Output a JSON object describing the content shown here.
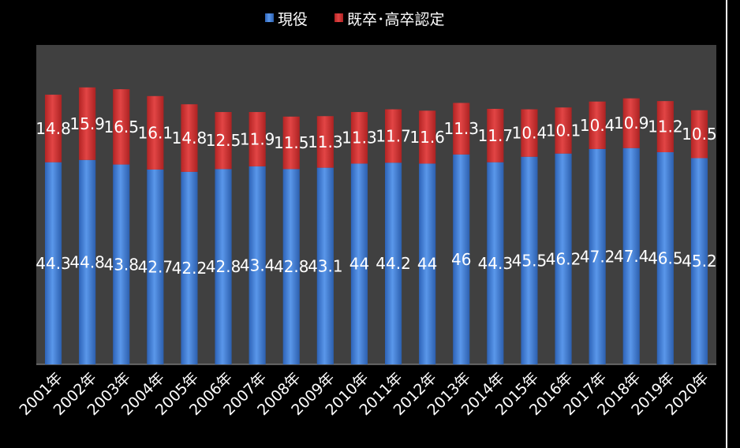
{
  "chart_data": {
    "type": "bar",
    "stacked": true,
    "categories": [
      "2001年",
      "2002年",
      "2003年",
      "2004年",
      "2005年",
      "2006年",
      "2007年",
      "2008年",
      "2009年",
      "2010年",
      "2011年",
      "2012年",
      "2013年",
      "2014年",
      "2015年",
      "2016年",
      "2017年",
      "2018年",
      "2019年",
      "2020年"
    ],
    "series": [
      {
        "name": "現役",
        "color": "#3a78d4",
        "values": [
          44.3,
          44.8,
          43.8,
          42.7,
          42.2,
          42.8,
          43.4,
          42.8,
          43.1,
          44,
          44.2,
          44,
          46,
          44.3,
          45.5,
          46.2,
          47.2,
          47.4,
          46.5,
          45.2
        ]
      },
      {
        "name": "既卒･高卒認定",
        "color": "#d63030",
        "values": [
          14.8,
          15.9,
          16.5,
          16.1,
          14.8,
          12.5,
          11.9,
          11.5,
          11.3,
          11.3,
          11.7,
          11.6,
          11.3,
          11.7,
          10.4,
          10.1,
          10.4,
          10.9,
          11.2,
          10.5
        ]
      }
    ],
    "ylim": [
      0,
      70
    ],
    "grid": false,
    "legend": "top",
    "plot_background": "#404040",
    "background": "#000000"
  }
}
